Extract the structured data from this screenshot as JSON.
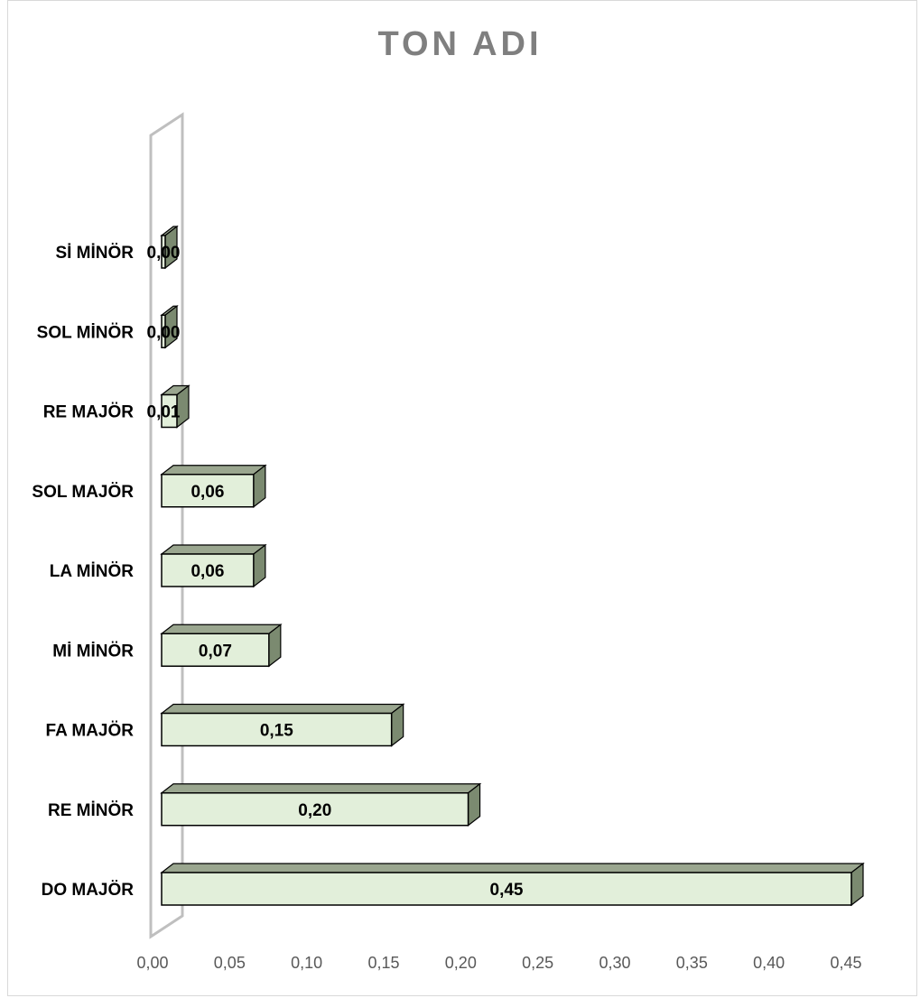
{
  "chart_data": {
    "type": "bar",
    "orientation": "horizontal",
    "style": "3d",
    "title": "TON ADI",
    "categories": [
      "DO MAJÖR",
      "RE MİNÖR",
      "FA MAJÖR",
      "Mİ MİNÖR",
      "LA MİNÖR",
      "SOL MAJÖR",
      "RE MAJÖR",
      "SOL MİNÖR",
      "Sİ MİNÖR"
    ],
    "values": [
      0.45,
      0.2,
      0.15,
      0.07,
      0.06,
      0.06,
      0.01,
      0.0,
      0.0
    ],
    "value_labels": [
      "0,45",
      "0,20",
      "0,15",
      "0,07",
      "0,06",
      "0,06",
      "0,01",
      "0,00",
      "0,00"
    ],
    "xlim": [
      0,
      0.45
    ],
    "x_ticks": [
      "0,00",
      "0,05",
      "0,10",
      "0,15",
      "0,20",
      "0,25",
      "0,30",
      "0,35",
      "0,40",
      "0,45"
    ],
    "xlabel": "",
    "ylabel": "",
    "grid": false,
    "legend": "none",
    "colors": {
      "bar_face": "#e2efda",
      "bar_top": "#9aa68f",
      "bar_side": "#7b8a70",
      "bar_stroke": "#000000",
      "wall": "#bfbfbf",
      "title": "#7f7f7f",
      "tick": "#595959"
    }
  }
}
